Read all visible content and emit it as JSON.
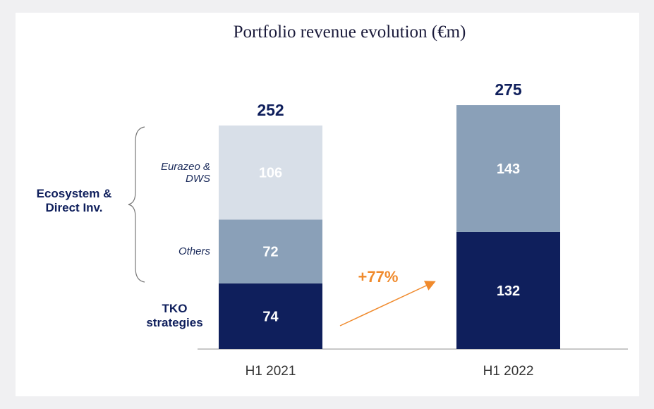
{
  "chart_data": {
    "type": "stacked_bar",
    "title": "Portfolio revenue evolution (€m)",
    "categories": [
      "H1 2021",
      "H1 2022"
    ],
    "series": [
      {
        "name": "TKO strategies",
        "color": "#0f1f5c",
        "values": [
          74,
          132
        ]
      },
      {
        "name": "Others",
        "color": "#8aa0b8",
        "values": [
          72,
          null
        ]
      },
      {
        "name": "Eurazeo & DWS",
        "color": "#d8dfe8",
        "values": [
          106,
          null
        ]
      },
      {
        "name": null,
        "color": "#8aa0b8",
        "values": [
          null,
          143
        ]
      }
    ],
    "totals": [
      252,
      275
    ],
    "group_label": "Ecosystem & Direct Inv.",
    "annotation": "+77%",
    "annotation_color": "#f08a2c"
  }
}
